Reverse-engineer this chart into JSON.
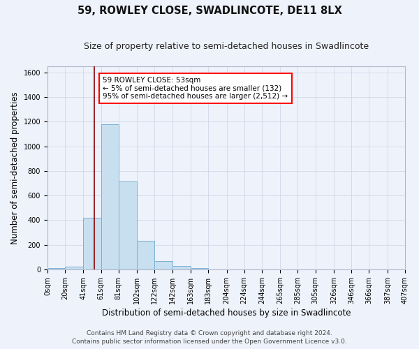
{
  "title": "59, ROWLEY CLOSE, SWADLINCOTE, DE11 8LX",
  "subtitle": "Size of property relative to semi-detached houses in Swadlincote",
  "xlabel": "Distribution of semi-detached houses by size in Swadlincote",
  "ylabel": "Number of semi-detached properties",
  "footer_line1": "Contains HM Land Registry data © Crown copyright and database right 2024.",
  "footer_line2": "Contains public sector information licensed under the Open Government Licence v3.0.",
  "bin_edges": [
    0,
    20,
    41,
    61,
    81,
    102,
    122,
    142,
    163,
    183,
    204,
    224,
    244,
    265,
    285,
    305,
    326,
    346,
    366,
    387,
    407
  ],
  "bin_labels": [
    "0sqm",
    "20sqm",
    "41sqm",
    "61sqm",
    "81sqm",
    "102sqm",
    "122sqm",
    "142sqm",
    "163sqm",
    "183sqm",
    "204sqm",
    "224sqm",
    "244sqm",
    "265sqm",
    "285sqm",
    "305sqm",
    "326sqm",
    "346sqm",
    "366sqm",
    "387sqm",
    "407sqm"
  ],
  "bar_heights": [
    10,
    25,
    420,
    1180,
    715,
    230,
    65,
    28,
    10,
    0,
    0,
    0,
    0,
    0,
    0,
    0,
    0,
    0,
    0,
    0
  ],
  "bar_color": "#c8dff0",
  "bar_edge_color": "#7ab0d4",
  "ylim": [
    0,
    1650
  ],
  "yticks": [
    0,
    200,
    400,
    600,
    800,
    1000,
    1200,
    1400,
    1600
  ],
  "red_line_x": 53,
  "property_label": "59 ROWLEY CLOSE: 53sqm",
  "pct_smaller": 5,
  "n_smaller": 132,
  "pct_larger": 95,
  "n_larger": 2512,
  "grid_color": "#d0d8e8",
  "bg_color": "#eef2fb",
  "title_fontsize": 10.5,
  "subtitle_fontsize": 9,
  "axis_label_fontsize": 8.5,
  "tick_fontsize": 7,
  "annotation_fontsize": 7.5,
  "footer_fontsize": 6.5
}
